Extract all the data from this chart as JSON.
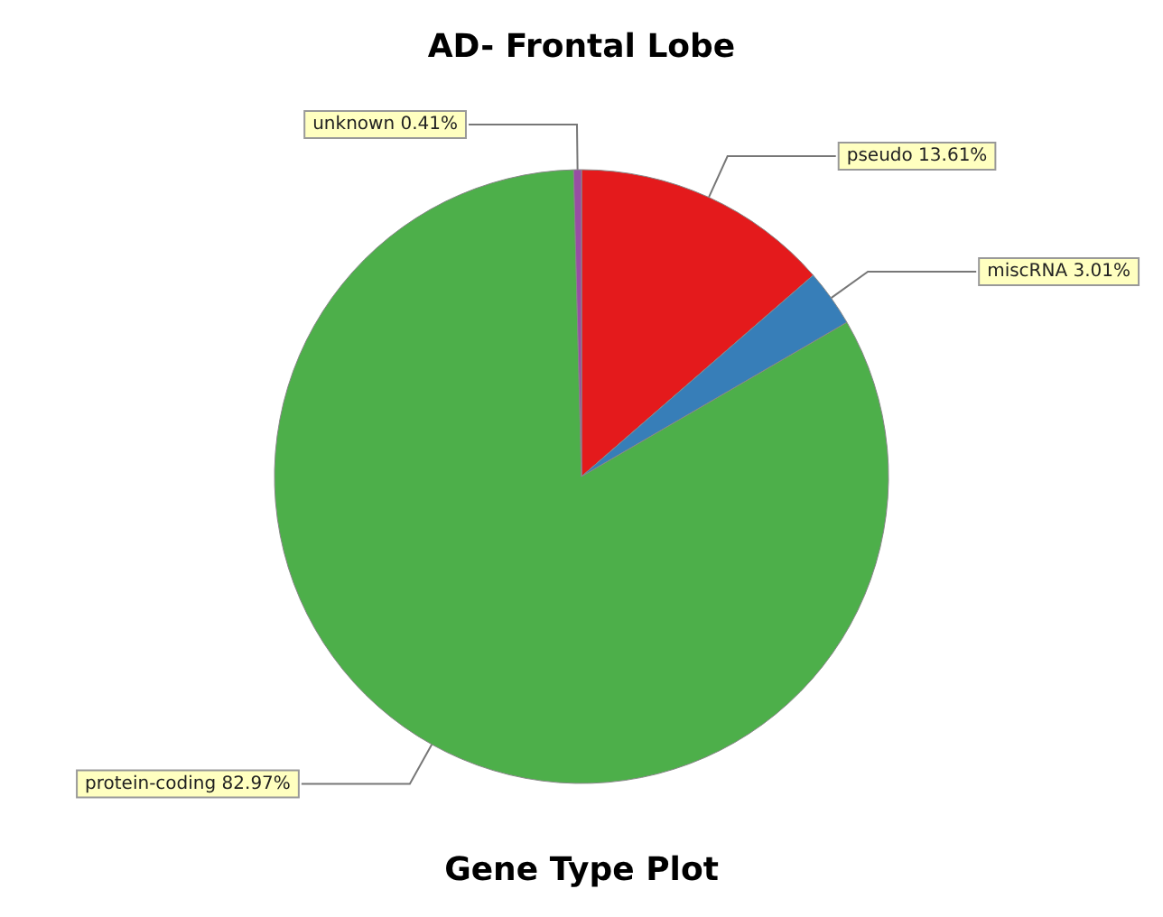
{
  "chart_data": {
    "type": "pie",
    "title": "AD- Frontal Lobe",
    "annotations": [
      "Gene Type Plot"
    ],
    "categories": [
      "pseudo",
      "miscRNA",
      "protein-coding",
      "unknown"
    ],
    "values": [
      13.61,
      3.01,
      82.97,
      0.41
    ],
    "colors": [
      "#e41a1c",
      "#377eb8",
      "#4daf4a",
      "#984ea3"
    ],
    "value_labels": [
      "13.61%",
      "3.01%",
      "82.97%",
      "0.41%"
    ],
    "legend": false
  }
}
